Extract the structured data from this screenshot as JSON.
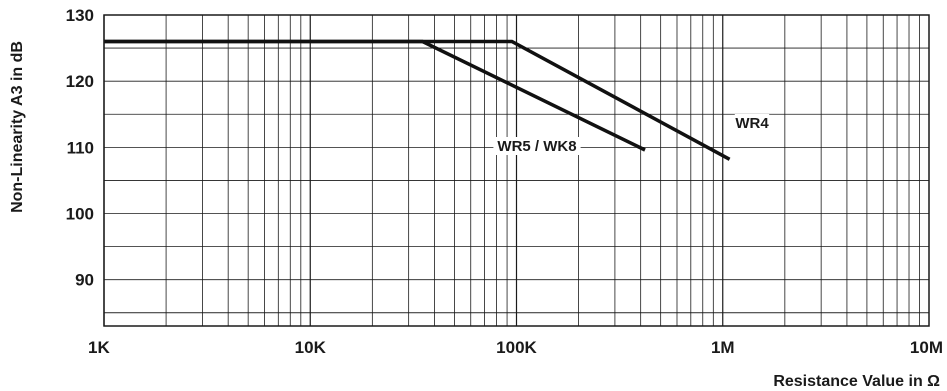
{
  "chart_data": {
    "type": "line",
    "title": "",
    "xlabel": "Resistance Value in Ω",
    "ylabel": "Non-Linearity A3 in dB",
    "x_scale": "log",
    "xlim": [
      1000,
      10000000
    ],
    "ylim": [
      83,
      130
    ],
    "grid": true,
    "x_ticks": [
      {
        "value": 1000,
        "label": "1K"
      },
      {
        "value": 10000,
        "label": "10K"
      },
      {
        "value": 100000,
        "label": "100K"
      },
      {
        "value": 1000000,
        "label": "1M"
      },
      {
        "value": 10000000,
        "label": "10M"
      }
    ],
    "y_ticks": [
      {
        "value": 130,
        "label": "130"
      },
      {
        "value": 120,
        "label": "120"
      },
      {
        "value": 110,
        "label": "110"
      },
      {
        "value": 100,
        "label": "100"
      },
      {
        "value": 90,
        "label": "90"
      }
    ],
    "series": [
      {
        "name": "WR5 / WK8",
        "x": [
          1000,
          35000,
          420000
        ],
        "y": [
          126,
          126,
          109.6
        ]
      },
      {
        "name": "WR4",
        "x": [
          1000,
          95000,
          1080000
        ],
        "y": [
          126,
          126,
          108.2
        ]
      }
    ],
    "colors": {
      "line": "#111111",
      "grid": "#1a1a1a",
      "text": "#1a1a1a"
    }
  }
}
